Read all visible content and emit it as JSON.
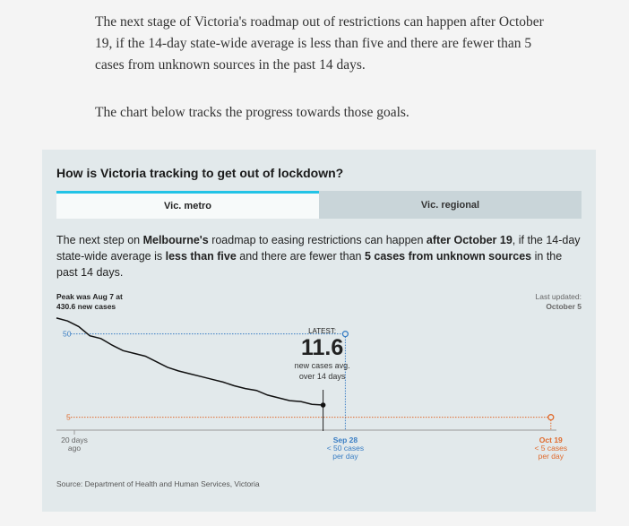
{
  "article": {
    "paragraph1": "The next stage of Victoria's roadmap out of restrictions can happen after October 19, if the 14-day state-wide average is less than five and there are fewer than 5 cases from unknown sources in the past 14 days.",
    "paragraph2": "The chart below tracks the progress towards those goals."
  },
  "card": {
    "title": "How is Victoria tracking to get out of lockdown?",
    "tabs": [
      {
        "label": "Vic. metro",
        "active": true
      },
      {
        "label": "Vic. regional",
        "active": false
      }
    ],
    "description": {
      "t1": "The next step on ",
      "b1": "Melbourne's",
      "t2": " roadmap to easing restrictions can happen ",
      "b2": "after October 19",
      "t3": ", if the 14-day state-wide average is ",
      "b3": "less than five",
      "t4": " and there are fewer than ",
      "b4": "5 cases from unknown sources",
      "t5": " in the past 14 days."
    },
    "source": "Source: Department of Health and Human Services, Victoria"
  },
  "chart_data": {
    "type": "line",
    "peak_note": [
      "Peak was Aug 7 at",
      "430.6 new cases"
    ],
    "last_updated": [
      "Last updated:",
      "October 5"
    ],
    "latest": {
      "label": "LATEST:",
      "value": "11.6",
      "caption": [
        "new cases avg.",
        "over 14 days"
      ]
    },
    "x_labels": {
      "start": [
        "20 days",
        "ago"
      ],
      "sep28": [
        "Sep 28",
        "< 50 cases",
        "per day"
      ],
      "oct19": [
        "Oct 19",
        "< 5 cases",
        "per day"
      ]
    },
    "thresholds": [
      {
        "value": 50,
        "label": "50",
        "color": "#3a7ec4"
      },
      {
        "value": 5,
        "label": "5",
        "color": "#e06a2c"
      }
    ],
    "series": [
      {
        "values": [
          [
            -20,
            58.6
          ],
          [
            -19,
            57
          ],
          [
            -18,
            54
          ],
          [
            -17,
            49
          ],
          [
            -16,
            47.5
          ],
          [
            -15,
            44
          ],
          [
            -14,
            41
          ],
          [
            -13,
            39.5
          ],
          [
            -12,
            38
          ],
          [
            -11,
            35
          ],
          [
            -10,
            32
          ],
          [
            -9,
            30
          ],
          [
            -8,
            28.5
          ],
          [
            -7,
            27
          ],
          [
            -6,
            25.5
          ],
          [
            -5,
            24
          ],
          [
            -4,
            22
          ],
          [
            -3,
            20.5
          ],
          [
            -2,
            19.5
          ],
          [
            -1,
            17
          ],
          [
            0,
            15.5
          ],
          [
            1,
            14
          ],
          [
            2,
            13.5
          ],
          [
            3,
            12
          ],
          [
            4,
            11.6
          ]
        ]
      }
    ],
    "x_range": [
      -20,
      25
    ],
    "y_range": [
      0,
      60
    ],
    "colors": {
      "line": "#111111",
      "metro_target": "#3a7ec4",
      "regional_target": "#e06a2c",
      "axis": "#999999"
    }
  }
}
